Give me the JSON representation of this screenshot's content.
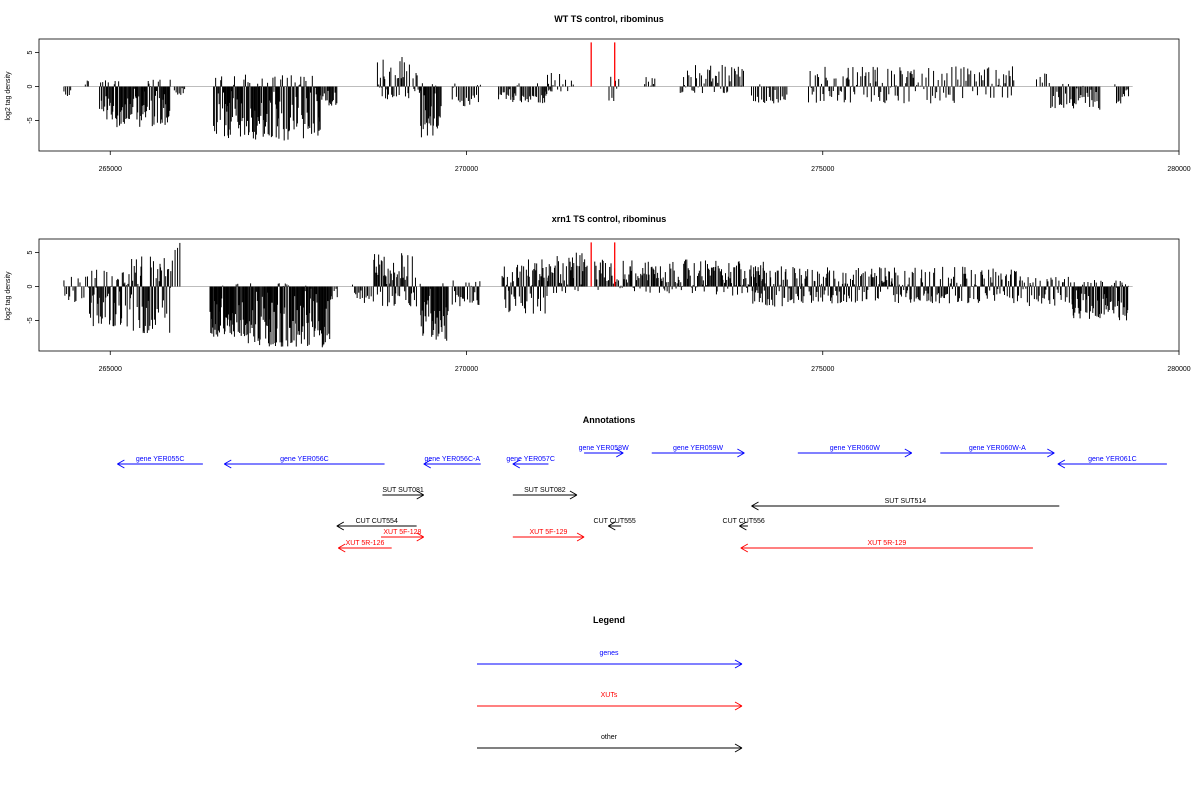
{
  "chart_data": [
    {
      "type": "bar",
      "title": "WT TS control, ribominus",
      "ylabel": "log2 tag density",
      "xlabel": "",
      "xlim": [
        264000,
        280000
      ],
      "ylim": [
        -9.5,
        7
      ],
      "xticks": [
        265000,
        270000,
        275000,
        280000
      ],
      "xtick_labels": [
        "265000",
        "270000",
        "275000",
        "280000"
      ],
      "yticks": [
        5,
        0,
        -5
      ],
      "ytick_labels": [
        "5",
        "0",
        "-5"
      ],
      "highlight_color": "#ff0000",
      "highlights": [
        {
          "x": 271750,
          "y": 6.5
        },
        {
          "x": 272080,
          "y": 6.5
        }
      ],
      "segments": [
        {
          "x0": 264350,
          "x1": 264450,
          "min": -1.5,
          "max": 0,
          "density": 0.5
        },
        {
          "x0": 264650,
          "x1": 264700,
          "min": 0,
          "max": 1.0,
          "density": 0.5
        },
        {
          "x0": 264850,
          "x1": 265850,
          "min": -6,
          "max": 1.2,
          "density": 1
        },
        {
          "x0": 265900,
          "x1": 266050,
          "min": -1.5,
          "max": 0,
          "density": 0.5
        },
        {
          "x0": 266450,
          "x1": 267950,
          "min": -8,
          "max": 1.8,
          "density": 1
        },
        {
          "x0": 267950,
          "x1": 268200,
          "min": -3,
          "max": 0,
          "density": 0.6
        },
        {
          "x0": 268750,
          "x1": 269200,
          "min": -2,
          "max": 4.5,
          "density": 0.8
        },
        {
          "x0": 269250,
          "x1": 269350,
          "min": -1,
          "max": 2.5,
          "density": 0.6
        },
        {
          "x0": 269350,
          "x1": 269650,
          "min": -7.5,
          "max": 0.5,
          "density": 1
        },
        {
          "x0": 269800,
          "x1": 270200,
          "min": -3,
          "max": 0.5,
          "density": 0.5
        },
        {
          "x0": 270450,
          "x1": 270650,
          "min": -2,
          "max": 0,
          "density": 0.5
        },
        {
          "x0": 270650,
          "x1": 271200,
          "min": -2.5,
          "max": 0.5,
          "density": 0.6
        },
        {
          "x0": 271100,
          "x1": 271500,
          "min": -1,
          "max": 2.5,
          "density": 0.4
        },
        {
          "x0": 272000,
          "x1": 272150,
          "min": -2.5,
          "max": 1.5,
          "density": 0.5
        },
        {
          "x0": 272500,
          "x1": 272650,
          "min": 0,
          "max": 1.5,
          "density": 0.4
        },
        {
          "x0": 273000,
          "x1": 273900,
          "min": -1,
          "max": 3.2,
          "density": 0.6
        },
        {
          "x0": 274000,
          "x1": 274500,
          "min": -2.5,
          "max": 0.5,
          "density": 0.5
        },
        {
          "x0": 274800,
          "x1": 276300,
          "min": -2.5,
          "max": 3,
          "density": 0.6
        },
        {
          "x0": 276300,
          "x1": 277700,
          "min": -2.5,
          "max": 3,
          "density": 0.5
        },
        {
          "x0": 278000,
          "x1": 278200,
          "min": 0,
          "max": 2,
          "density": 0.3
        },
        {
          "x0": 278200,
          "x1": 278900,
          "min": -3.5,
          "max": 0.5,
          "density": 0.6
        },
        {
          "x0": 279100,
          "x1": 279300,
          "min": -2.5,
          "max": 0.5,
          "density": 0.6
        }
      ]
    },
    {
      "type": "bar",
      "title": "xrn1 TS control, ribominus",
      "ylabel": "log2 tag density",
      "xlabel": "",
      "xlim": [
        264000,
        280000
      ],
      "ylim": [
        -9.5,
        7
      ],
      "xticks": [
        265000,
        270000,
        275000,
        280000
      ],
      "xtick_labels": [
        "265000",
        "270000",
        "275000",
        "280000"
      ],
      "yticks": [
        5,
        0,
        -5
      ],
      "ytick_labels": [
        "5",
        "0",
        "-5"
      ],
      "highlight_color": "#ff0000",
      "highlights": [
        {
          "x": 271750,
          "y": 6.5
        },
        {
          "x": 272080,
          "y": 6.5
        }
      ],
      "segments": [
        {
          "x0": 264350,
          "x1": 264700,
          "min": -2.5,
          "max": 1.5,
          "density": 0.5
        },
        {
          "x0": 264700,
          "x1": 265300,
          "min": -6,
          "max": 2.5,
          "density": 1
        },
        {
          "x0": 265300,
          "x1": 265850,
          "min": -7,
          "max": 4.5,
          "density": 1
        },
        {
          "x0": 265850,
          "x1": 266000,
          "min": -1,
          "max": 6.5,
          "density": 0.4
        },
        {
          "x0": 266400,
          "x1": 266900,
          "min": -7.5,
          "max": 0.5,
          "density": 1
        },
        {
          "x0": 266900,
          "x1": 268100,
          "min": -9,
          "max": 0.5,
          "density": 1
        },
        {
          "x0": 268100,
          "x1": 268200,
          "min": -2,
          "max": 0,
          "density": 0.5
        },
        {
          "x0": 268400,
          "x1": 268700,
          "min": -2.5,
          "max": 0.5,
          "density": 0.5
        },
        {
          "x0": 268700,
          "x1": 269300,
          "min": -3,
          "max": 5,
          "density": 1
        },
        {
          "x0": 269350,
          "x1": 269750,
          "min": -8,
          "max": 1,
          "density": 1
        },
        {
          "x0": 269800,
          "x1": 270200,
          "min": -3,
          "max": 1,
          "density": 0.7
        },
        {
          "x0": 270500,
          "x1": 271150,
          "min": -4,
          "max": 4,
          "density": 1
        },
        {
          "x0": 271150,
          "x1": 271700,
          "min": -1,
          "max": 5,
          "density": 0.8
        },
        {
          "x0": 271800,
          "x1": 272300,
          "min": -1,
          "max": 4,
          "density": 0.7
        },
        {
          "x0": 272300,
          "x1": 273500,
          "min": -1,
          "max": 4,
          "density": 0.8
        },
        {
          "x0": 273500,
          "x1": 274200,
          "min": -1.5,
          "max": 4,
          "density": 0.9
        },
        {
          "x0": 274000,
          "x1": 274700,
          "min": -3,
          "max": 3,
          "density": 0.8
        },
        {
          "x0": 274700,
          "x1": 276500,
          "min": -2.5,
          "max": 3,
          "density": 0.9
        },
        {
          "x0": 276500,
          "x1": 277800,
          "min": -2.5,
          "max": 3,
          "density": 0.8
        },
        {
          "x0": 277800,
          "x1": 278500,
          "min": -3,
          "max": 1.5,
          "density": 0.7
        },
        {
          "x0": 278500,
          "x1": 279300,
          "min": -5,
          "max": 1,
          "density": 1
        }
      ]
    }
  ],
  "annotations": {
    "title": "Annotations",
    "xlim": [
      264000,
      280000
    ],
    "features": [
      {
        "label": "gene YER055C",
        "start": 266300,
        "end": 265100,
        "color": "#0000ff"
      },
      {
        "label": "gene YER056C",
        "start": 268850,
        "end": 266600,
        "color": "#0000ff"
      },
      {
        "label": "gene YER056C-A",
        "start": 270200,
        "end": 269400,
        "color": "#0000ff"
      },
      {
        "label": "gene YER057C",
        "start": 271150,
        "end": 270650,
        "color": "#0000ff"
      },
      {
        "label": "gene YER058W",
        "start": 271650,
        "end": 272200,
        "color": "#0000ff"
      },
      {
        "label": "gene YER059W",
        "start": 272600,
        "end": 273900,
        "color": "#0000ff"
      },
      {
        "label": "gene YER060W",
        "start": 274650,
        "end": 276250,
        "color": "#0000ff"
      },
      {
        "label": "gene YER060W-A",
        "start": 276650,
        "end": 278250,
        "color": "#0000ff"
      },
      {
        "label": "gene YER061C",
        "start": 279830,
        "end": 278300,
        "color": "#0000ff"
      },
      {
        "label": "SUT SUT081",
        "start": 268820,
        "end": 269400,
        "color": "#000000"
      },
      {
        "label": "SUT SUT082",
        "start": 270650,
        "end": 271550,
        "color": "#000000"
      },
      {
        "label": "SUT SUT514",
        "start": 278320,
        "end": 274000,
        "color": "#000000"
      },
      {
        "label": "CUT CUT554",
        "start": 269300,
        "end": 268180,
        "color": "#000000"
      },
      {
        "label": "CUT CUT555",
        "start": 272170,
        "end": 271990,
        "color": "#000000"
      },
      {
        "label": "CUT CUT556",
        "start": 273950,
        "end": 273830,
        "color": "#000000"
      },
      {
        "label": "XUT 5F-128",
        "start": 268800,
        "end": 269400,
        "color": "#ff0000"
      },
      {
        "label": "XUT 5F-129",
        "start": 270650,
        "end": 271650,
        "color": "#ff0000"
      },
      {
        "label": "XUT 5R-126",
        "start": 268950,
        "end": 268200,
        "color": "#ff0000"
      },
      {
        "label": "XUT 5R-129",
        "start": 277950,
        "end": 273850,
        "color": "#ff0000"
      }
    ]
  },
  "legend": {
    "title": "Legend",
    "items": [
      {
        "label": "genes",
        "color": "#0000ff"
      },
      {
        "label": "XUTs",
        "color": "#ff0000"
      },
      {
        "label": "other",
        "color": "#000000"
      }
    ]
  }
}
